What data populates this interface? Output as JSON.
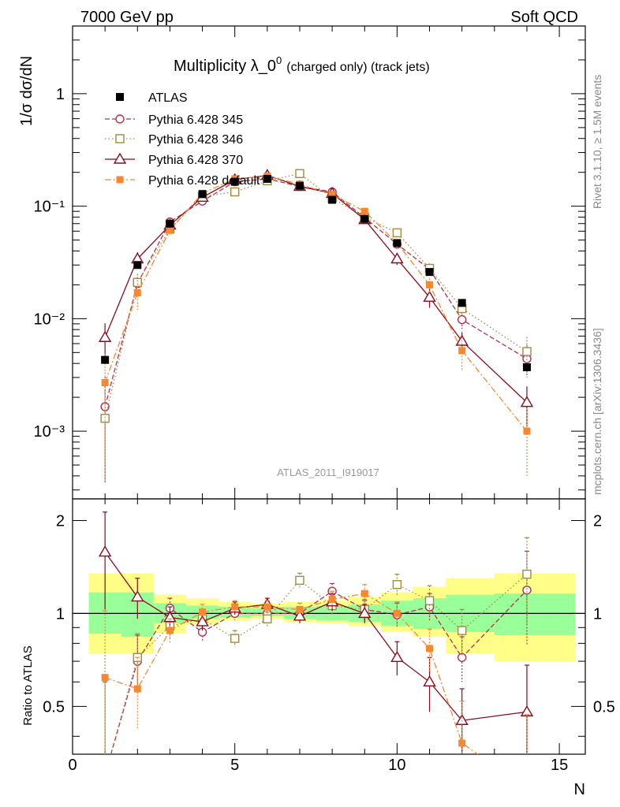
{
  "header": {
    "left": "7000 GeV pp",
    "right": "Soft QCD"
  },
  "side": {
    "rivet": "Rivet 3.1.10, ≥ 1.5M events",
    "mcplots": "mcplots.cern.ch [arXiv:1306.3436]"
  },
  "colors": {
    "atlas": "#000000",
    "p345": "#b03050",
    "p346": "#a08a40",
    "p370": "#8b0a1e",
    "pdefault": "#f7882f",
    "band_inner": "#99ff99",
    "band_outer": "#ffff88"
  },
  "chart_data": {
    "type": "line",
    "title": "Multiplicity λ_0",
    "title_sup": "0",
    "title_suffix": "(charged only) (track jets)",
    "xlabel": "N",
    "ylabel": "1/σ dσ/dN",
    "ratio_ylabel": "Ratio to ATLAS",
    "analysis_label": "ATLAS_2011_I919017",
    "xlim": [
      0,
      15.8
    ],
    "ylim": [
      0.00025,
      4
    ],
    "ratio_ylim": [
      0.35,
      2.35
    ],
    "x_ticks": [
      "0",
      "5",
      "10",
      "15"
    ],
    "y_ticks": [
      "1",
      "10⁻¹",
      "10⁻²",
      "10⁻³"
    ],
    "ratio_ticks": [
      "2",
      "1",
      "0.5"
    ],
    "legend": {
      "placement": "top-left",
      "entries": [
        "ATLAS",
        "Pythia 6.428 345",
        "Pythia 6.428 346",
        "Pythia 6.428 370",
        "Pythia 6.428 default"
      ]
    },
    "data": {
      "name": "ATLAS",
      "x": [
        1,
        2,
        3,
        4,
        5,
        6,
        7,
        8,
        9,
        10,
        11,
        12,
        14
      ],
      "y": [
        0.0043,
        0.03,
        0.07,
        0.128,
        0.165,
        0.175,
        0.152,
        0.114,
        0.077,
        0.047,
        0.026,
        0.0138,
        0.0037
      ],
      "band_inner_lo": [
        0.86,
        0.84,
        0.93,
        0.96,
        0.97,
        0.98,
        0.96,
        0.95,
        0.94,
        0.91,
        0.89,
        0.87,
        0.85
      ],
      "band_inner_hi": [
        1.17,
        1.17,
        1.08,
        1.06,
        1.05,
        1.04,
        1.05,
        1.06,
        1.07,
        1.1,
        1.12,
        1.15,
        1.16
      ],
      "band_outer_lo": [
        0.74,
        0.74,
        0.86,
        0.92,
        0.95,
        0.96,
        0.94,
        0.93,
        0.91,
        0.87,
        0.84,
        0.74,
        0.7
      ],
      "band_outer_hi": [
        1.35,
        1.35,
        1.15,
        1.12,
        1.09,
        1.08,
        1.09,
        1.1,
        1.13,
        1.17,
        1.22,
        1.3,
        1.35
      ]
    },
    "series": [
      {
        "name": "Pythia 6.428 345",
        "marker": "circle",
        "dash": "6,3",
        "x": [
          1,
          2,
          3,
          4,
          5,
          6,
          7,
          8,
          9,
          10,
          11,
          12,
          14
        ],
        "y": [
          0.00165,
          0.0205,
          0.0725,
          0.111,
          0.165,
          0.175,
          0.15,
          0.134,
          0.079,
          0.046,
          0.0275,
          0.0098,
          0.0044
        ],
        "err": [
          0.0014,
          0.003,
          0.006,
          0.006,
          0.008,
          0.008,
          0.008,
          0.008,
          0.005,
          0.004,
          0.003,
          0.0017,
          0.0014
        ],
        "ratio": [
          0.3,
          0.7,
          1.04,
          0.87,
          1.0,
          1.0,
          1.0,
          1.18,
          1.03,
          0.99,
          1.05,
          0.72,
          1.19
        ],
        "ratio_err": [
          0.3,
          0.15,
          0.08,
          0.06,
          0.05,
          0.05,
          0.05,
          0.07,
          0.07,
          0.09,
          0.11,
          0.12,
          0.4
        ]
      },
      {
        "name": "Pythia 6.428 346",
        "marker": "square-open",
        "dash": "1.5,3",
        "x": [
          1,
          2,
          3,
          4,
          5,
          6,
          7,
          8,
          9,
          10,
          11,
          12,
          14
        ],
        "y": [
          0.0013,
          0.021,
          0.063,
          0.122,
          0.134,
          0.168,
          0.195,
          0.118,
          0.08,
          0.058,
          0.028,
          0.0123,
          0.0051
        ],
        "err": [
          0.001,
          0.004,
          0.006,
          0.006,
          0.007,
          0.008,
          0.009,
          0.007,
          0.006,
          0.005,
          0.003,
          0.002,
          0.0018
        ],
        "ratio": [
          0.3,
          0.72,
          0.91,
          0.96,
          0.83,
          0.96,
          1.28,
          1.06,
          1.03,
          1.24,
          1.1,
          0.88,
          1.34
        ],
        "ratio_err": [
          0.3,
          0.14,
          0.08,
          0.06,
          0.05,
          0.05,
          0.07,
          0.07,
          0.08,
          0.1,
          0.13,
          0.15,
          0.42
        ]
      },
      {
        "name": "Pythia 6.428 370",
        "marker": "triangle",
        "dash": "none",
        "x": [
          1,
          2,
          3,
          4,
          5,
          6,
          7,
          8,
          9,
          10,
          11,
          12,
          14
        ],
        "y": [
          0.0068,
          0.034,
          0.068,
          0.12,
          0.172,
          0.188,
          0.15,
          0.13,
          0.076,
          0.034,
          0.0155,
          0.0063,
          0.0018
        ],
        "err": [
          0.0023,
          0.005,
          0.006,
          0.006,
          0.008,
          0.008,
          0.008,
          0.008,
          0.005,
          0.004,
          0.003,
          0.0013,
          0.0007
        ],
        "ratio": [
          1.58,
          1.13,
          0.97,
          0.94,
          1.04,
          1.07,
          0.98,
          1.09,
          1.0,
          0.72,
          0.6,
          0.45,
          0.48
        ],
        "ratio_err": [
          0.55,
          0.17,
          0.08,
          0.06,
          0.05,
          0.05,
          0.05,
          0.07,
          0.07,
          0.09,
          0.12,
          0.12,
          0.2
        ]
      },
      {
        "name": "Pythia 6.428 default",
        "marker": "square-filled",
        "dash": "8,3,2,3",
        "x": [
          1,
          2,
          3,
          4,
          5,
          6,
          7,
          8,
          9,
          10,
          11,
          12,
          14
        ],
        "y": [
          0.0027,
          0.017,
          0.061,
          0.13,
          0.175,
          0.185,
          0.157,
          0.127,
          0.09,
          0.047,
          0.02,
          0.0052,
          0.001
        ],
        "err": [
          0.0022,
          0.005,
          0.006,
          0.007,
          0.008,
          0.008,
          0.008,
          0.008,
          0.006,
          0.004,
          0.003,
          0.0017,
          0.0006
        ],
        "ratio": [
          0.62,
          0.57,
          0.88,
          1.01,
          1.05,
          1.05,
          1.03,
          1.11,
          1.16,
          1.0,
          0.77,
          0.38,
          0.27
        ],
        "ratio_err": [
          0.4,
          0.15,
          0.08,
          0.06,
          0.05,
          0.05,
          0.05,
          0.07,
          0.08,
          0.09,
          0.12,
          0.14,
          0.2
        ]
      }
    ]
  }
}
